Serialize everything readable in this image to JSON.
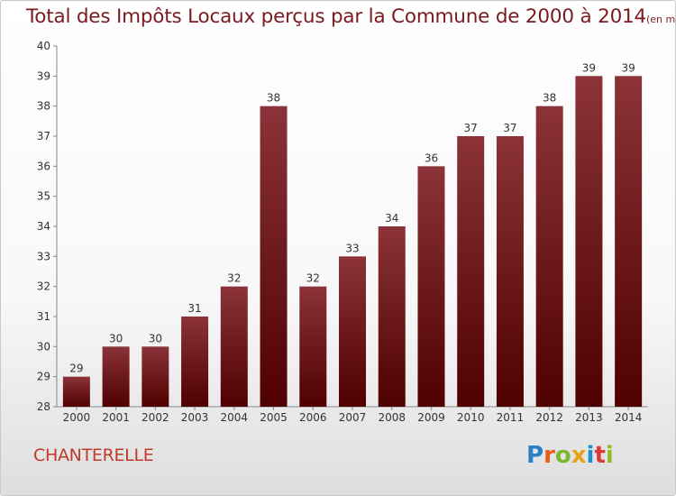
{
  "title": "Total des Impôts Locaux perçus par la Commune de 2000 à 2014",
  "title_unit": "(en milliers d'€)",
  "commune": "CHANTERELLE",
  "logo": {
    "letters": [
      "P",
      "r",
      "o",
      "x",
      "i",
      "t",
      "i"
    ],
    "colors": [
      "#2a7fc6",
      "#e85d1a",
      "#7cb82f",
      "#e8a21a",
      "#1f8fcf",
      "#d93a3a",
      "#8cbf26"
    ]
  },
  "colors": {
    "bar_top": "#8b3338",
    "bar_bottom": "#4f0000",
    "title": "#7a1a1f",
    "commune": "#c0392b"
  },
  "chart_data": {
    "type": "bar",
    "categories": [
      "2000",
      "2001",
      "2002",
      "2003",
      "2004",
      "2005",
      "2006",
      "2007",
      "2008",
      "2009",
      "2010",
      "2011",
      "2012",
      "2013",
      "2014"
    ],
    "values": [
      29,
      30,
      30,
      31,
      32,
      38,
      32,
      33,
      34,
      36,
      37,
      37,
      38,
      39,
      39
    ],
    "ylim": [
      28,
      40
    ],
    "yticks": [
      "28",
      "29",
      "30",
      "31",
      "32",
      "33",
      "34",
      "35",
      "36",
      "37",
      "38",
      "39",
      "40"
    ],
    "data_labels": [
      "29",
      "30",
      "30",
      "31",
      "32",
      "38",
      "32",
      "33",
      "34",
      "36",
      "37",
      "37",
      "38",
      "39",
      "39"
    ],
    "grid": false,
    "legend": "none"
  }
}
